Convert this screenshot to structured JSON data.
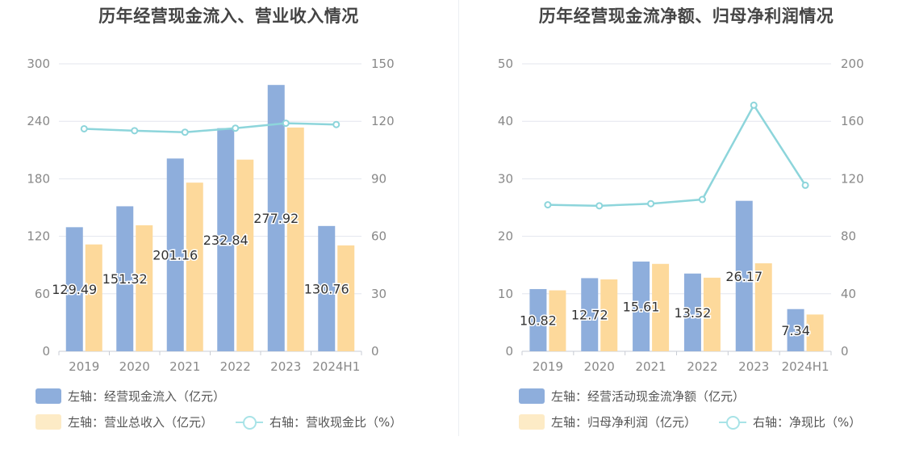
{
  "chart_data": [
    {
      "type": "bar",
      "title": "历年经营现金流入、营业收入情况",
      "categories": [
        "2019",
        "2020",
        "2021",
        "2022",
        "2023",
        "2024H1"
      ],
      "left_axis": {
        "ticks": [
          "0",
          "60",
          "120",
          "180",
          "240",
          "300"
        ],
        "min": 0,
        "max": 300
      },
      "right_axis": {
        "ticks": [
          "0",
          "30",
          "60",
          "90",
          "120",
          "150"
        ],
        "min": 0,
        "max": 150
      },
      "series": [
        {
          "name": "左轴：经营现金流入（亿元）",
          "kind": "bar",
          "axis": "left",
          "color": "#8eaedc",
          "values": [
            129.49,
            151.32,
            201.16,
            232.84,
            277.92,
            130.76
          ]
        },
        {
          "name": "左轴：营业总收入（亿元）",
          "kind": "bar",
          "axis": "left",
          "color": "#fdd99b",
          "values": [
            111.5,
            131.5,
            176.0,
            200.0,
            233.5,
            110.5
          ]
        },
        {
          "name": "右轴：营收现金比（%）",
          "kind": "line",
          "axis": "right",
          "color": "#8dd5db",
          "values": [
            116.1,
            115.1,
            114.3,
            116.4,
            119.0,
            118.3
          ]
        }
      ],
      "data_labels": [
        "129.49",
        "151.32",
        "201.16",
        "232.84",
        "277.92",
        "130.76"
      ]
    },
    {
      "type": "bar",
      "title": "历年经营现金流净额、归母净利润情况",
      "categories": [
        "2019",
        "2020",
        "2021",
        "2022",
        "2023",
        "2024H1"
      ],
      "left_axis": {
        "ticks": [
          "0",
          "10",
          "20",
          "30",
          "40",
          "50"
        ],
        "min": 0,
        "max": 50
      },
      "right_axis": {
        "ticks": [
          "0",
          "40",
          "80",
          "120",
          "160",
          "200"
        ],
        "min": 0,
        "max": 200
      },
      "series": [
        {
          "name": "左轴：经营活动现金流净额（亿元）",
          "kind": "bar",
          "axis": "left",
          "color": "#8eaedc",
          "values": [
            10.82,
            12.72,
            15.61,
            13.52,
            26.17,
            7.34
          ]
        },
        {
          "name": "左轴：归母净利润（亿元）",
          "kind": "bar",
          "axis": "left",
          "color": "#fdd99b",
          "values": [
            10.6,
            12.5,
            15.2,
            12.8,
            15.3,
            6.4
          ]
        },
        {
          "name": "右轴：净现比（%）",
          "kind": "line",
          "axis": "right",
          "color": "#8dd5db",
          "values": [
            101.9,
            101.2,
            102.7,
            105.6,
            171.2,
            115.5
          ]
        }
      ],
      "data_labels": [
        "10.82",
        "12.72",
        "15.61",
        "13.52",
        "26.17",
        "7.34"
      ]
    }
  ]
}
